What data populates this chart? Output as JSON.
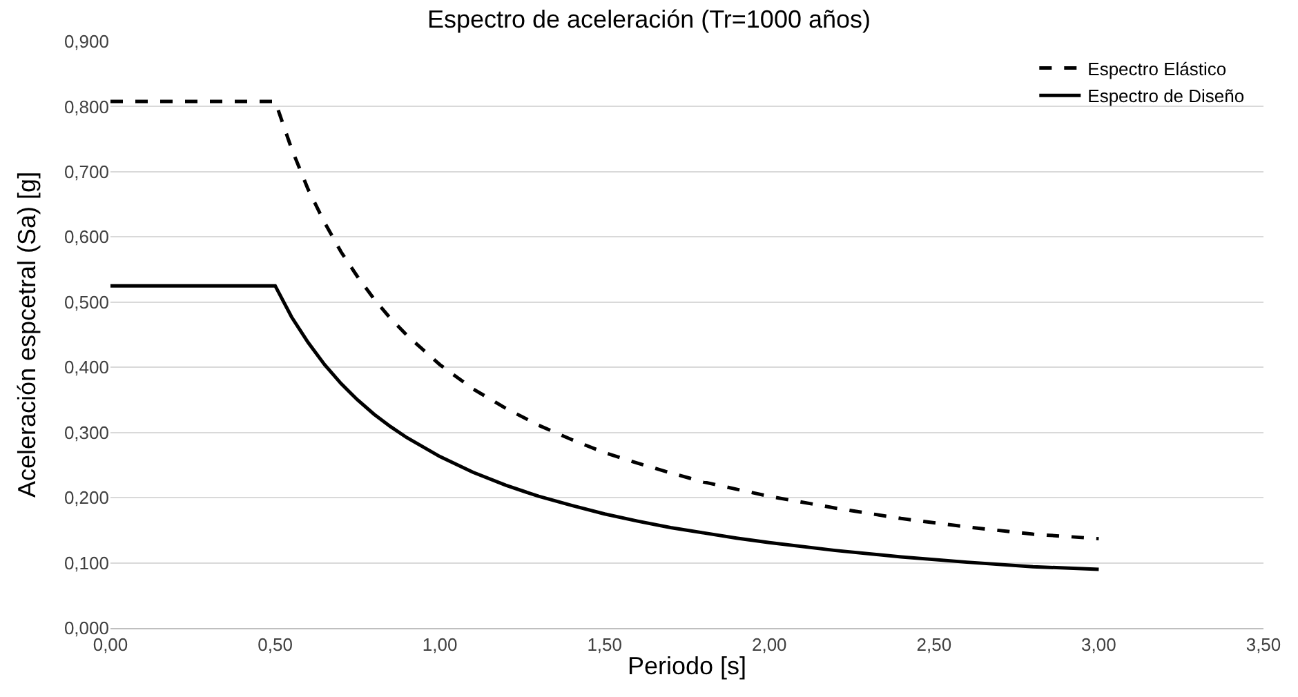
{
  "chart_data": {
    "type": "line",
    "title": "Espectro de aceleración (Tr=1000 años)",
    "xlabel": "Periodo [s]",
    "ylabel": "Aceleración espcetral (Sa) [g]",
    "x": [
      0,
      0.5,
      0.55,
      0.6,
      0.65,
      0.7,
      0.75,
      0.8,
      0.85,
      0.9,
      1.0,
      1.1,
      1.2,
      1.3,
      1.4,
      1.5,
      1.6,
      1.7,
      1.8,
      1.9,
      2.0,
      2.2,
      2.4,
      2.6,
      2.8,
      3.0
    ],
    "series": [
      {
        "name": "Espectro Elástico",
        "color": "#000000",
        "line_style": "dashed",
        "values": [
          0.808,
          0.808,
          0.735,
          0.673,
          0.622,
          0.577,
          0.539,
          0.505,
          0.475,
          0.449,
          0.404,
          0.367,
          0.337,
          0.311,
          0.289,
          0.269,
          0.253,
          0.238,
          0.224,
          0.213,
          0.202,
          0.184,
          0.168,
          0.155,
          0.144,
          0.137
        ]
      },
      {
        "name": "Espectro de Diseño",
        "color": "#000000",
        "line_style": "solid",
        "values": [
          0.525,
          0.525,
          0.477,
          0.438,
          0.404,
          0.375,
          0.35,
          0.328,
          0.309,
          0.292,
          0.263,
          0.239,
          0.219,
          0.202,
          0.188,
          0.175,
          0.164,
          0.154,
          0.146,
          0.138,
          0.131,
          0.119,
          0.109,
          0.101,
          0.094,
          0.09
        ]
      }
    ],
    "xlim": [
      0,
      3.5
    ],
    "xticks": [
      {
        "value": 0,
        "label": "0,00"
      },
      {
        "value": 0.5,
        "label": "0,50"
      },
      {
        "value": 1,
        "label": "1,00"
      },
      {
        "value": 1.5,
        "label": "1,50"
      },
      {
        "value": 2,
        "label": "2,00"
      },
      {
        "value": 2.5,
        "label": "2,50"
      },
      {
        "value": 3,
        "label": "3,00"
      },
      {
        "value": 3.5,
        "label": "3,50"
      }
    ],
    "ylim": [
      0,
      0.9
    ],
    "yticks": [
      {
        "value": 0,
        "label": "0,000"
      },
      {
        "value": 0.1,
        "label": "0,100"
      },
      {
        "value": 0.2,
        "label": "0,200"
      },
      {
        "value": 0.3,
        "label": "0,300"
      },
      {
        "value": 0.4,
        "label": "0,400"
      },
      {
        "value": 0.5,
        "label": "0,500"
      },
      {
        "value": 0.6,
        "label": "0,600"
      },
      {
        "value": 0.7,
        "label": "0,700"
      },
      {
        "value": 0.8,
        "label": "0,800"
      },
      {
        "value": 0.9,
        "label": "0,900"
      }
    ],
    "grid": "y",
    "legend": "top right",
    "marker": "none"
  }
}
